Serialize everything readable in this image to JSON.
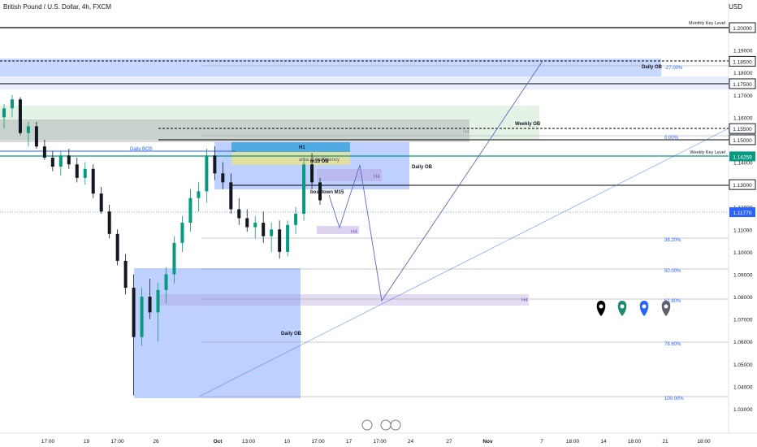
{
  "header": {
    "title": "British Pound / U.S. Dollar, 4h, FXCM",
    "currency": "USD"
  },
  "chart_data": {
    "type": "candlestick",
    "y_axis": {
      "min": 1.025,
      "max": 1.215,
      "ticks": [
        "1.19000",
        "1.18000",
        "1.17000",
        "1.16000",
        "1.14000",
        "1.12000",
        "1.11000",
        "1.10000",
        "1.09000",
        "1.08000",
        "1.07000",
        "1.06000",
        "1.05000",
        "1.04000",
        "1.03000"
      ],
      "tick_values": [
        1.19,
        1.18,
        1.17,
        1.16,
        1.14,
        1.12,
        1.11,
        1.1,
        1.09,
        1.08,
        1.07,
        1.06,
        1.05,
        1.04,
        1.03
      ]
    },
    "x_axis": {
      "ticks": [
        "17:00",
        "19",
        "17:00",
        "26",
        "Oct",
        "13:00",
        "10",
        "17:00",
        "17",
        "17:00",
        "24",
        "27",
        "Nov",
        "7",
        "18:00",
        "14",
        "18:00",
        "21",
        "18:00"
      ],
      "tick_x_index": [
        2,
        7,
        11,
        16,
        24,
        28,
        33,
        37,
        41,
        45,
        49,
        54,
        59,
        66,
        70,
        74,
        78,
        82,
        87
      ]
    },
    "candles": [
      [
        1.16,
        1.166,
        1.155,
        1.164
      ],
      [
        1.164,
        1.17,
        1.16,
        1.168
      ],
      [
        1.168,
        1.169,
        1.152,
        1.153
      ],
      [
        1.153,
        1.158,
        1.147,
        1.156
      ],
      [
        1.156,
        1.158,
        1.146,
        1.147
      ],
      [
        1.147,
        1.15,
        1.141,
        1.142
      ],
      [
        1.142,
        1.145,
        1.136,
        1.138
      ],
      [
        1.138,
        1.145,
        1.134,
        1.143
      ],
      [
        1.143,
        1.146,
        1.137,
        1.139
      ],
      [
        1.139,
        1.142,
        1.131,
        1.133
      ],
      [
        1.133,
        1.14,
        1.13,
        1.137
      ],
      [
        1.137,
        1.139,
        1.124,
        1.126
      ],
      [
        1.126,
        1.129,
        1.117,
        1.118
      ],
      [
        1.118,
        1.121,
        1.106,
        1.108
      ],
      [
        1.108,
        1.11,
        1.094,
        1.096
      ],
      [
        1.096,
        1.099,
        1.081,
        1.084
      ],
      [
        1.084,
        1.09,
        1.036,
        1.062
      ],
      [
        1.062,
        1.084,
        1.058,
        1.08
      ],
      [
        1.08,
        1.088,
        1.07,
        1.073
      ],
      [
        1.073,
        1.086,
        1.06,
        1.083
      ],
      [
        1.083,
        1.093,
        1.077,
        1.09
      ],
      [
        1.09,
        1.107,
        1.086,
        1.104
      ],
      [
        1.104,
        1.116,
        1.1,
        1.113
      ],
      [
        1.113,
        1.128,
        1.109,
        1.124
      ],
      [
        1.124,
        1.131,
        1.118,
        1.127
      ],
      [
        1.127,
        1.146,
        1.122,
        1.143
      ],
      [
        1.143,
        1.147,
        1.132,
        1.135
      ],
      [
        1.135,
        1.14,
        1.128,
        1.131
      ],
      [
        1.131,
        1.135,
        1.117,
        1.119
      ],
      [
        1.119,
        1.124,
        1.112,
        1.115
      ],
      [
        1.115,
        1.119,
        1.109,
        1.111
      ],
      [
        1.111,
        1.116,
        1.106,
        1.113
      ],
      [
        1.113,
        1.118,
        1.104,
        1.107
      ],
      [
        1.107,
        1.113,
        1.1,
        1.11
      ],
      [
        1.11,
        1.114,
        1.097,
        1.1
      ],
      [
        1.1,
        1.114,
        1.098,
        1.112
      ],
      [
        1.112,
        1.12,
        1.108,
        1.117
      ],
      [
        1.117,
        1.142,
        1.114,
        1.139
      ],
      [
        1.139,
        1.144,
        1.128,
        1.131
      ],
      [
        1.131,
        1.133,
        1.121,
        1.123
      ]
    ],
    "price_labels": [
      {
        "text": "1.20000",
        "value": 1.2,
        "dark": true
      },
      {
        "text": "1.18500",
        "value": 1.185,
        "dark": true
      },
      {
        "text": "1.17500",
        "value": 1.175,
        "dark": true
      },
      {
        "text": "1.15500",
        "value": 1.155,
        "dark": true
      },
      {
        "text": "1.15000",
        "value": 1.15,
        "dark": true
      },
      {
        "text": "1.14259",
        "value": 1.14259,
        "dark": false,
        "color": "#089981"
      },
      {
        "text": "1.13000",
        "value": 1.13,
        "dark": true
      },
      {
        "text": "1.11770",
        "value": 1.1177,
        "dark": false,
        "color": "#2962ff"
      }
    ],
    "annotations": {
      "monthly_key_level": "Monthly Key Level",
      "weekly_key_level": "Weekly Key Level",
      "daily_ob_top": "Daily OB",
      "fib_top": "-27.00%",
      "weekly_ob": "Weekly OB",
      "h4_a": "H4",
      "fib_0": "0.00%",
      "daily_bos": "Daily BOS",
      "h1": "H1",
      "inefficiency": "area of inefficiency",
      "m15_ob": "m15 OB",
      "daily_ob_mid": "Daily OB",
      "h4_b": "H4",
      "bos_down": "bos down M15",
      "h4_c": "H4",
      "fib_382": "38.20%",
      "fib_50": "50.00%",
      "fib_618": "61.80%",
      "h4_d": "H4",
      "daily_ob_bottom": "Daily OB",
      "fib_786": "78.60%",
      "fib_100": "100.00%"
    },
    "markers_colors": [
      "#000000",
      "#1e8a6e",
      "#2962ff",
      "#5d606b"
    ]
  }
}
